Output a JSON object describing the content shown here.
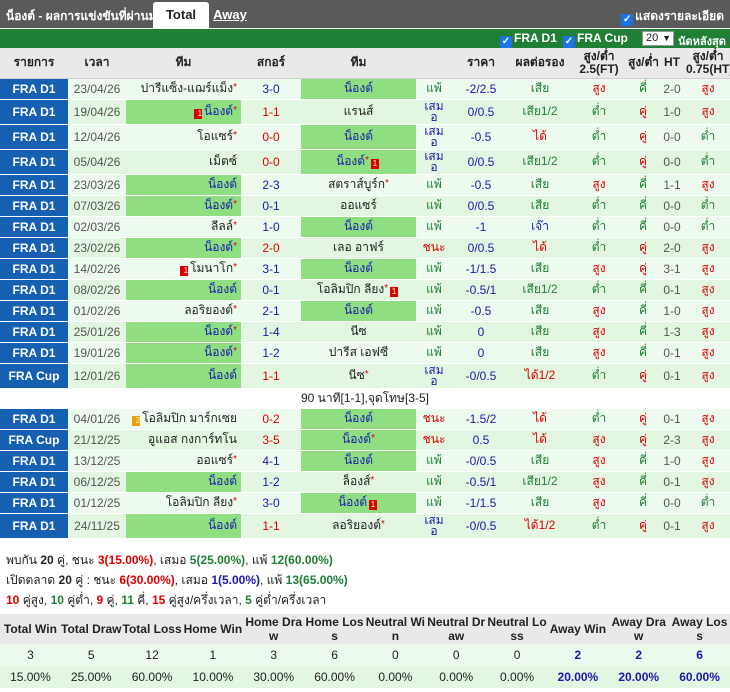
{
  "header": {
    "title": "น็องต์ - ผลการแข่งขันที่ผ่านมา",
    "tab_total": "Total",
    "tab_away": "Away",
    "show_details": "แสดงรายละเอียด"
  },
  "filters": {
    "league1": "FRA D1",
    "league2": "FRA Cup",
    "count": "20",
    "last_label": "นัดหลังสุด"
  },
  "columns": [
    "รายการ",
    "เวลา",
    "ทีม",
    "สกอร์",
    "ทีม",
    "",
    "ราคา",
    "ผลต่อรอง",
    "สูง/ต่ำ 2.5(FT)",
    "สูง/ต่ำ",
    "HT",
    "สูง/ต่ำ 0.75(HT)"
  ],
  "matches": [
    {
      "league": "FRA D1",
      "date": "23/04/26",
      "home": "ปารีแซ็ง-แฌร์แม็ง",
      "home_star": "*",
      "score": "3-0",
      "away": "น็องต์",
      "res": "แพ้",
      "hcp": "-2/2.5",
      "hres": "เสีย",
      "ou": "สูง",
      "ou2": "คี่",
      "ht": "2-0",
      "ht_ou": "สูง",
      "hl": "away"
    },
    {
      "league": "FRA D1",
      "date": "19/04/26",
      "home": "น็องต์",
      "home_star": "*",
      "score": "1-1",
      "away": "แรนส์",
      "res": "เสมอ",
      "hcp": "0/0.5",
      "hres": "เสีย1/2",
      "ou": "ต่ำ",
      "ou2": "คู่",
      "ht": "1-0",
      "ht_ou": "สูง",
      "hl": "home",
      "home_rc": "1"
    },
    {
      "league": "FRA D1",
      "date": "12/04/26",
      "home": "โอแซร์",
      "home_star": "*",
      "score": "0-0",
      "away": "น็องต์",
      "res": "เสมอ",
      "hcp": "-0.5",
      "hres": "ได้",
      "ou": "ต่ำ",
      "ou2": "คู่",
      "ht": "0-0",
      "ht_ou": "ต่ำ",
      "hl": "away"
    },
    {
      "league": "FRA D1",
      "date": "05/04/26",
      "home": "เม็ตซ์",
      "home_star": "",
      "score": "0-0",
      "away": "น็องต์",
      "away_star": "*",
      "res": "เสมอ",
      "hcp": "0/0.5",
      "hres": "เสีย1/2",
      "ou": "ต่ำ",
      "ou2": "คู่",
      "ht": "0-0",
      "ht_ou": "ต่ำ",
      "hl": "away",
      "away_rc": "1"
    },
    {
      "league": "FRA D1",
      "date": "23/03/26",
      "home": "น็องต์",
      "home_star": "",
      "score": "2-3",
      "away": "สตราส์บูร์ก",
      "away_star": "*",
      "res": "แพ้",
      "hcp": "-0.5",
      "hres": "เสีย",
      "ou": "สูง",
      "ou2": "คี่",
      "ht": "1-1",
      "ht_ou": "สูง",
      "hl": "home"
    },
    {
      "league": "FRA D1",
      "date": "07/03/26",
      "home": "น็องต์",
      "home_star": "*",
      "score": "0-1",
      "away": "ออแซร์",
      "res": "แพ้",
      "hcp": "0/0.5",
      "hres": "เสีย",
      "ou": "ต่ำ",
      "ou2": "คี่",
      "ht": "0-0",
      "ht_ou": "ต่ำ",
      "hl": "home"
    },
    {
      "league": "FRA D1",
      "date": "02/03/26",
      "home": "ลีลล์",
      "home_star": "*",
      "score": "1-0",
      "away": "น็องต์",
      "res": "แพ้",
      "hcp": "-1",
      "hres": "เจ๊า",
      "ou": "ต่ำ",
      "ou2": "คี่",
      "ht": "0-0",
      "ht_ou": "ต่ำ",
      "hl": "away"
    },
    {
      "league": "FRA D1",
      "date": "23/02/26",
      "home": "น็องต์",
      "home_star": "*",
      "score": "2-0",
      "away": "เลอ อาฟร์",
      "res": "ชนะ",
      "hcp": "0/0.5",
      "hres": "ได้",
      "ou": "ต่ำ",
      "ou2": "คู่",
      "ht": "2-0",
      "ht_ou": "สูง",
      "hl": "home"
    },
    {
      "league": "FRA D1",
      "date": "14/02/26",
      "home": "โมนาโก",
      "home_star": "*",
      "score": "3-1",
      "away": "น็องต์",
      "res": "แพ้",
      "hcp": "-1/1.5",
      "hres": "เสีย",
      "ou": "สูง",
      "ou2": "คู่",
      "ht": "3-1",
      "ht_ou": "สูง",
      "hl": "away",
      "home_rc": "1"
    },
    {
      "league": "FRA D1",
      "date": "08/02/26",
      "home": "น็องต์",
      "home_star": "",
      "score": "0-1",
      "away": "โอลิมปิก ลียง",
      "away_star": "*",
      "res": "แพ้",
      "hcp": "-0.5/1",
      "hres": "เสีย1/2",
      "ou": "ต่ำ",
      "ou2": "คี่",
      "ht": "0-1",
      "ht_ou": "สูง",
      "hl": "home",
      "away_rc": "1"
    },
    {
      "league": "FRA D1",
      "date": "01/02/26",
      "home": "ลอริยองต์",
      "home_star": "*",
      "score": "2-1",
      "away": "น็องต์",
      "res": "แพ้",
      "hcp": "-0.5",
      "hres": "เสีย",
      "ou": "สูง",
      "ou2": "คี่",
      "ht": "1-0",
      "ht_ou": "สูง",
      "hl": "away"
    },
    {
      "league": "FRA D1",
      "date": "25/01/26",
      "home": "น็องต์",
      "home_star": "*",
      "score": "1-4",
      "away": "นีซ",
      "res": "แพ้",
      "hcp": "0",
      "hres": "เสีย",
      "ou": "สูง",
      "ou2": "คี่",
      "ht": "1-3",
      "ht_ou": "สูง",
      "hl": "home"
    },
    {
      "league": "FRA D1",
      "date": "19/01/26",
      "home": "น็องต์",
      "home_star": "*",
      "score": "1-2",
      "away": "ปารีส เอฟซี",
      "res": "แพ้",
      "hcp": "0",
      "hres": "เสีย",
      "ou": "สูง",
      "ou2": "คี่",
      "ht": "0-1",
      "ht_ou": "สูง",
      "hl": "home"
    },
    {
      "league": "FRA Cup",
      "date": "12/01/26",
      "home": "น็องต์",
      "home_star": "",
      "score": "1-1",
      "away": "นีซ",
      "away_star": "*",
      "res": "เสมอ",
      "hcp": "-0/0.5",
      "hres": "ได้1/2",
      "ou": "ต่ำ",
      "ou2": "คู่",
      "ht": "0-1",
      "ht_ou": "สูง",
      "hl": "home",
      "note": "90 นาที[1-1],จุดโทษ[3-5]"
    },
    {
      "league": "FRA D1",
      "date": "04/01/26",
      "home": "โอลิมปิก มาร์กเซย",
      "home_star": "",
      "score": "0-2",
      "away": "น็องต์",
      "res": "ชนะ",
      "hcp": "-1.5/2",
      "hres": "ได้",
      "ou": "ต่ำ",
      "ou2": "คู่",
      "ht": "0-1",
      "ht_ou": "สูง",
      "hl": "away",
      "home_yc": "2"
    },
    {
      "league": "FRA Cup",
      "date": "21/12/25",
      "home": "อูแอส กงการ์ทโน",
      "home_star": "",
      "score": "3-5",
      "away": "น็องต์",
      "away_star": "*",
      "res": "ชนะ",
      "hcp": "0.5",
      "hres": "ได้",
      "ou": "สูง",
      "ou2": "คู่",
      "ht": "2-3",
      "ht_ou": "สูง",
      "hl": "away"
    },
    {
      "league": "FRA D1",
      "date": "13/12/25",
      "home": "ออแซร์",
      "home_star": "*",
      "score": "4-1",
      "away": "น็องต์",
      "res": "แพ้",
      "hcp": "-0/0.5",
      "hres": "เสีย",
      "ou": "สูง",
      "ou2": "คี่",
      "ht": "1-0",
      "ht_ou": "สูง",
      "hl": "away"
    },
    {
      "league": "FRA D1",
      "date": "06/12/25",
      "home": "น็องต์",
      "home_star": "",
      "score": "1-2",
      "away": "ล็องส์",
      "away_star": "*",
      "res": "แพ้",
      "hcp": "-0.5/1",
      "hres": "เสีย1/2",
      "ou": "สูง",
      "ou2": "คี่",
      "ht": "0-1",
      "ht_ou": "สูง",
      "hl": "home"
    },
    {
      "league": "FRA D1",
      "date": "01/12/25",
      "home": "โอลิมปิก ลียง",
      "home_star": "*",
      "score": "3-0",
      "away": "น็องต์",
      "res": "แพ้",
      "hcp": "-1/1.5",
      "hres": "เสีย",
      "ou": "สูง",
      "ou2": "คี่",
      "ht": "0-0",
      "ht_ou": "ต่ำ",
      "hl": "away",
      "away_rc": "1"
    },
    {
      "league": "FRA D1",
      "date": "24/11/25",
      "home": "น็องต์",
      "home_star": "",
      "score": "1-1",
      "away": "ลอริยองต์",
      "away_star": "*",
      "res": "เสมอ",
      "hcp": "-0/0.5",
      "hres": "ได้1/2",
      "ou": "ต่ำ",
      "ou2": "คู่",
      "ht": "0-1",
      "ht_ou": "สูง",
      "hl": "home"
    }
  ],
  "stats": {
    "line1": {
      "p1": "พบกัน ",
      "n": "20",
      "p2": " คู่, ชนะ ",
      "w": "3(15.00%)",
      "p3": ", เสมอ ",
      "d": "5(25.00%)",
      "p4": ", แพ้ ",
      "l": "12(60.00%)"
    },
    "line2": {
      "p1": "เปิดตลาด ",
      "n": "20",
      "p2": " คู่ : ชนะ ",
      "w": "6(30.00%)",
      "p3": ", เสมอ ",
      "d": "1(5.00%)",
      "p4": ", แพ้ ",
      "l": "13(65.00%)"
    },
    "line3": {
      "a": "10",
      "a_t": " คู่สูง, ",
      "b": "10",
      "b_t": " คู่ต่ำ, ",
      "c": "9",
      "c_t": " คู่, ",
      "d": "11",
      "d_t": " คี่, ",
      "e": "15",
      "e_t": " คู่สูง/ครึ่งเวลา, ",
      "f": "5",
      "f_t": " คู่ต่ำ/ครึ่งเวลา"
    }
  },
  "summary": {
    "headers": [
      "Total Win",
      "Total Draw",
      "Total Loss",
      "Home Win",
      "Home Draw",
      "Home Loss",
      "Neutral Win",
      "Neutral Draw",
      "Neutral Loss",
      "Away Win",
      "Away Draw",
      "Away Loss"
    ],
    "counts": [
      "3",
      "5",
      "12",
      "1",
      "3",
      "6",
      "0",
      "0",
      "0",
      "2",
      "2",
      "6"
    ],
    "pcts": [
      "15.00%",
      "25.00%",
      "60.00%",
      "10.00%",
      "30.00%",
      "60.00%",
      "0.00%",
      "0.00%",
      "0.00%",
      "20.00%",
      "20.00%",
      "60.00%"
    ]
  },
  "colors": {
    "league_blue": "#1560b0",
    "green_bar": "#1e7f35",
    "highlight_green": "#8fdf82",
    "red": "#dd0000",
    "blue": "#1a1aaa"
  }
}
